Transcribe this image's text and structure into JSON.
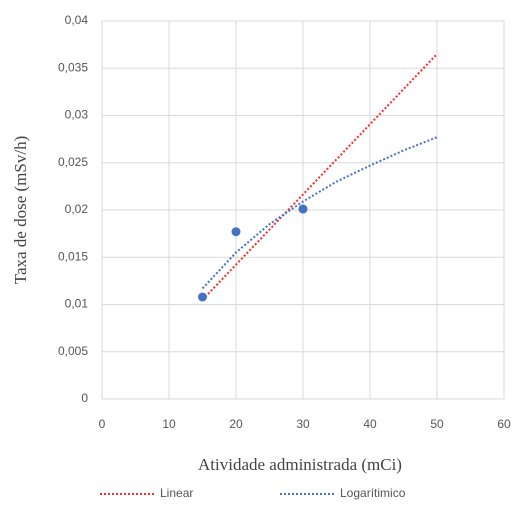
{
  "chart_data": {
    "type": "scatter",
    "x_label": "Atividade administrada (mCi)",
    "y_label": "Taxa de dose (mSv/h)",
    "xlim": [
      0,
      60
    ],
    "xticks": [
      0,
      10,
      20,
      30,
      40,
      50,
      60
    ],
    "ylim": [
      0,
      0.04
    ],
    "yticks": [
      0,
      {
        "value": 0.005,
        "label": "0,005"
      },
      {
        "value": 0.01,
        "label": "0,01"
      },
      {
        "value": 0.015,
        "label": "0,015"
      },
      {
        "value": 0.02,
        "label": "0,02"
      },
      {
        "value": 0.025,
        "label": "0,025"
      },
      {
        "value": 0.03,
        "label": "0,03"
      },
      {
        "value": 0.035,
        "label": "0,035"
      },
      {
        "value": 0.04,
        "label": "0,04"
      }
    ],
    "grid": true,
    "legend": "bottom",
    "points": {
      "color": "#4472c4",
      "x": [
        15,
        20,
        30
      ],
      "values": [
        0.0108,
        0.0177,
        0.0201
      ]
    },
    "trendlines": [
      {
        "name": "Linear",
        "color": "#ff2a2a",
        "x": [
          15,
          50
        ],
        "values": [
          0.0105,
          0.0365
        ]
      },
      {
        "name": "Logarítimico",
        "color": "#4472c4",
        "x": [
          15,
          20,
          25,
          30,
          35,
          40,
          45,
          50
        ],
        "values": [
          0.0117,
          0.0155,
          0.0185,
          0.0209,
          0.023,
          0.0247,
          0.0263,
          0.0277
        ]
      }
    ]
  }
}
